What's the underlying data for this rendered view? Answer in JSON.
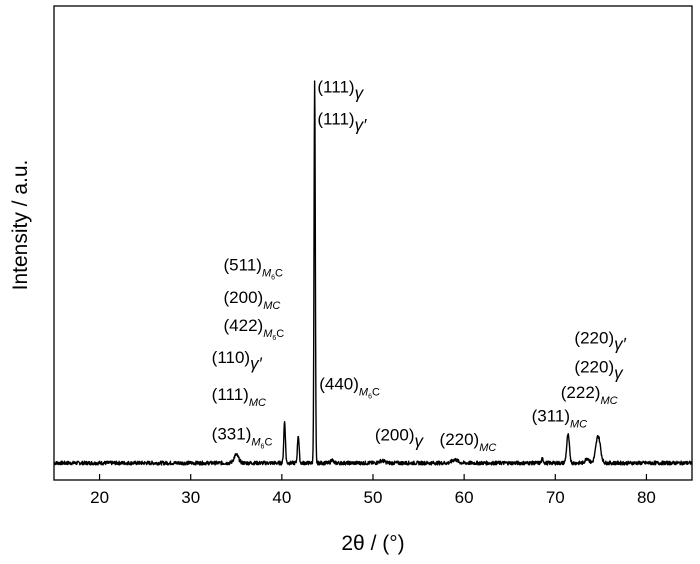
{
  "chart_data": {
    "type": "line",
    "title": "",
    "xlabel": "2θ / (°)",
    "ylabel": "Intensity / a.u.",
    "xlim": [
      15,
      85
    ],
    "ylim": [
      0,
      100
    ],
    "xticks": [
      20,
      30,
      40,
      50,
      60,
      70,
      80
    ],
    "yticks_shown": false,
    "grid": false,
    "legend": "none",
    "baseline": 0,
    "noise_amplitude": 0.5,
    "peaks": [
      {
        "x": 35.0,
        "height": 2.2,
        "width": 0.25
      },
      {
        "x": 40.3,
        "height": 11.0,
        "width": 0.09
      },
      {
        "x": 41.8,
        "height": 7.4,
        "width": 0.09
      },
      {
        "x": 43.6,
        "height": 101.5,
        "width": 0.07
      },
      {
        "x": 45.5,
        "height": 0.9,
        "width": 0.12
      },
      {
        "x": 51.0,
        "height": 0.6,
        "width": 0.3
      },
      {
        "x": 59.0,
        "height": 0.9,
        "width": 0.3
      },
      {
        "x": 68.6,
        "height": 1.1,
        "width": 0.1
      },
      {
        "x": 71.4,
        "height": 7.4,
        "width": 0.15
      },
      {
        "x": 73.5,
        "height": 1.3,
        "width": 0.2
      },
      {
        "x": 74.7,
        "height": 7.2,
        "width": 0.25
      }
    ],
    "annotations": [
      {
        "main": "(111)",
        "sub": "γ",
        "sub_kind": "greek",
        "x": 43.9,
        "y": 98.5
      },
      {
        "main": "(111)",
        "sub": "γ′",
        "sub_kind": "greek",
        "x": 43.9,
        "y": 90.0
      },
      {
        "main": "(511)",
        "sub": "M",
        "sub2": "6",
        "sub3": "C",
        "sub_kind": "carbide",
        "x": 33.6,
        "y": 51.2
      },
      {
        "main": "(200)",
        "sub": "MC",
        "sub_kind": "mc",
        "x": 33.6,
        "y": 42.5
      },
      {
        "main": "(422)",
        "sub": "M",
        "sub2": "6",
        "sub3": "C",
        "sub_kind": "carbide",
        "x": 33.6,
        "y": 35.1
      },
      {
        "main": "(110)",
        "sub": "γ′",
        "sub_kind": "greek",
        "x": 32.3,
        "y": 26.6
      },
      {
        "main": "(111)",
        "sub": "MC",
        "sub_kind": "mc",
        "x": 32.3,
        "y": 16.8
      },
      {
        "main": "(440)",
        "sub": "M",
        "sub2": "6",
        "sub3": "C",
        "sub_kind": "carbide",
        "x": 44.1,
        "y": 19.6
      },
      {
        "main": "(331)",
        "sub": "M",
        "sub2": "6",
        "sub3": "C",
        "sub_kind": "carbide",
        "x": 32.3,
        "y": 6.3
      },
      {
        "main": "(200)",
        "sub": "γ",
        "sub_kind": "greek",
        "x": 50.2,
        "y": 6.0
      },
      {
        "main": "(220)",
        "sub": "MC",
        "sub_kind": "mc",
        "x": 57.3,
        "y": 4.8
      },
      {
        "main": "(311)",
        "sub": "MC",
        "sub_kind": "mc",
        "x": 67.4,
        "y": 11.0
      },
      {
        "main": "(222)",
        "sub": "MC",
        "sub_kind": "mc",
        "x": 70.6,
        "y": 17.3
      },
      {
        "main": "(220)",
        "sub": "γ",
        "sub_kind": "greek",
        "x": 72.1,
        "y": 24.1
      },
      {
        "main": "(220)",
        "sub": "γ′",
        "sub_kind": "greek",
        "x": 72.1,
        "y": 31.8
      }
    ]
  }
}
